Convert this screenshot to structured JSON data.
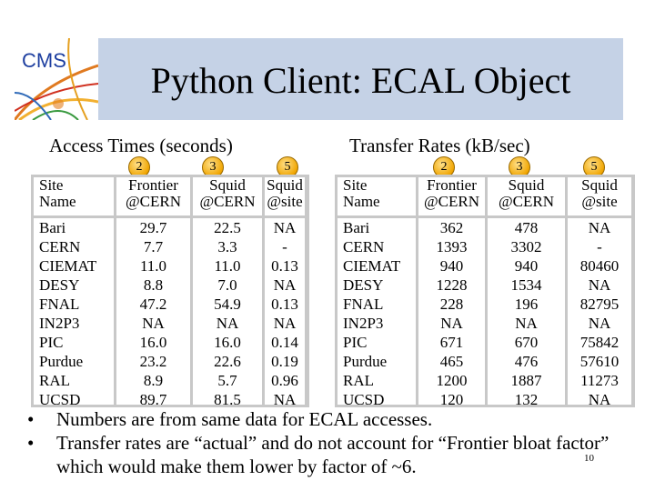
{
  "slide": {
    "title": "Python Client: ECAL Object",
    "logo_text": "CMS",
    "page_number": "10"
  },
  "access_table": {
    "heading": "Access Times (seconds)",
    "badges": [
      "2",
      "3",
      "5"
    ],
    "columns": [
      {
        "line1": "Site",
        "line2": "Name"
      },
      {
        "line1": "Frontier",
        "line2": "@CERN"
      },
      {
        "line1": "Squid",
        "line2": "@CERN"
      },
      {
        "line1": "Squid",
        "line2": "@site"
      }
    ],
    "rows": [
      [
        "Bari",
        "29.7",
        "22.5",
        "NA"
      ],
      [
        "CERN",
        "7.7",
        "3.3",
        "-"
      ],
      [
        "CIEMAT",
        "11.0",
        "11.0",
        "0.13"
      ],
      [
        "DESY",
        "8.8",
        "7.0",
        "NA"
      ],
      [
        "FNAL",
        "47.2",
        "54.9",
        "0.13"
      ],
      [
        "IN2P3",
        "NA",
        "NA",
        "NA"
      ],
      [
        "PIC",
        "16.0",
        "16.0",
        "0.14"
      ],
      [
        "Purdue",
        "23.2",
        "22.6",
        "0.19"
      ],
      [
        "RAL",
        "8.9",
        "5.7",
        "0.96"
      ],
      [
        "UCSD",
        "89.7",
        "81.5",
        "NA"
      ]
    ]
  },
  "transfer_table": {
    "heading": "Transfer Rates (kB/sec)",
    "badges": [
      "2",
      "3",
      "5"
    ],
    "columns": [
      {
        "line1": "Site",
        "line2": "Name"
      },
      {
        "line1": "Frontier",
        "line2": "@CERN"
      },
      {
        "line1": "Squid",
        "line2": "@CERN"
      },
      {
        "line1": "Squid",
        "line2": "@site"
      }
    ],
    "rows": [
      [
        "Bari",
        "362",
        "478",
        "NA"
      ],
      [
        "CERN",
        "1393",
        "3302",
        "-"
      ],
      [
        "CIEMAT",
        "940",
        "940",
        "80460"
      ],
      [
        "DESY",
        "1228",
        "1534",
        "NA"
      ],
      [
        "FNAL",
        "228",
        "196",
        "82795"
      ],
      [
        "IN2P3",
        "NA",
        "NA",
        "NA"
      ],
      [
        "PIC",
        "671",
        "670",
        "75842"
      ],
      [
        "Purdue",
        "465",
        "476",
        "57610"
      ],
      [
        "RAL",
        "1200",
        "1887",
        "11273"
      ],
      [
        "UCSD",
        "120",
        "132",
        "NA"
      ]
    ]
  },
  "bullets": [
    "Numbers are from same data for ECAL accesses.",
    "Transfer rates are “actual” and do not account for “Frontier bloat factor” which would make them lower by factor of ~6."
  ],
  "bullet_marker": "•",
  "colors": {
    "banner": "#c5d2e6",
    "table_grid": "#c8c8c8",
    "logo_text": "#1e3fa0",
    "badge": "#f0a500"
  }
}
